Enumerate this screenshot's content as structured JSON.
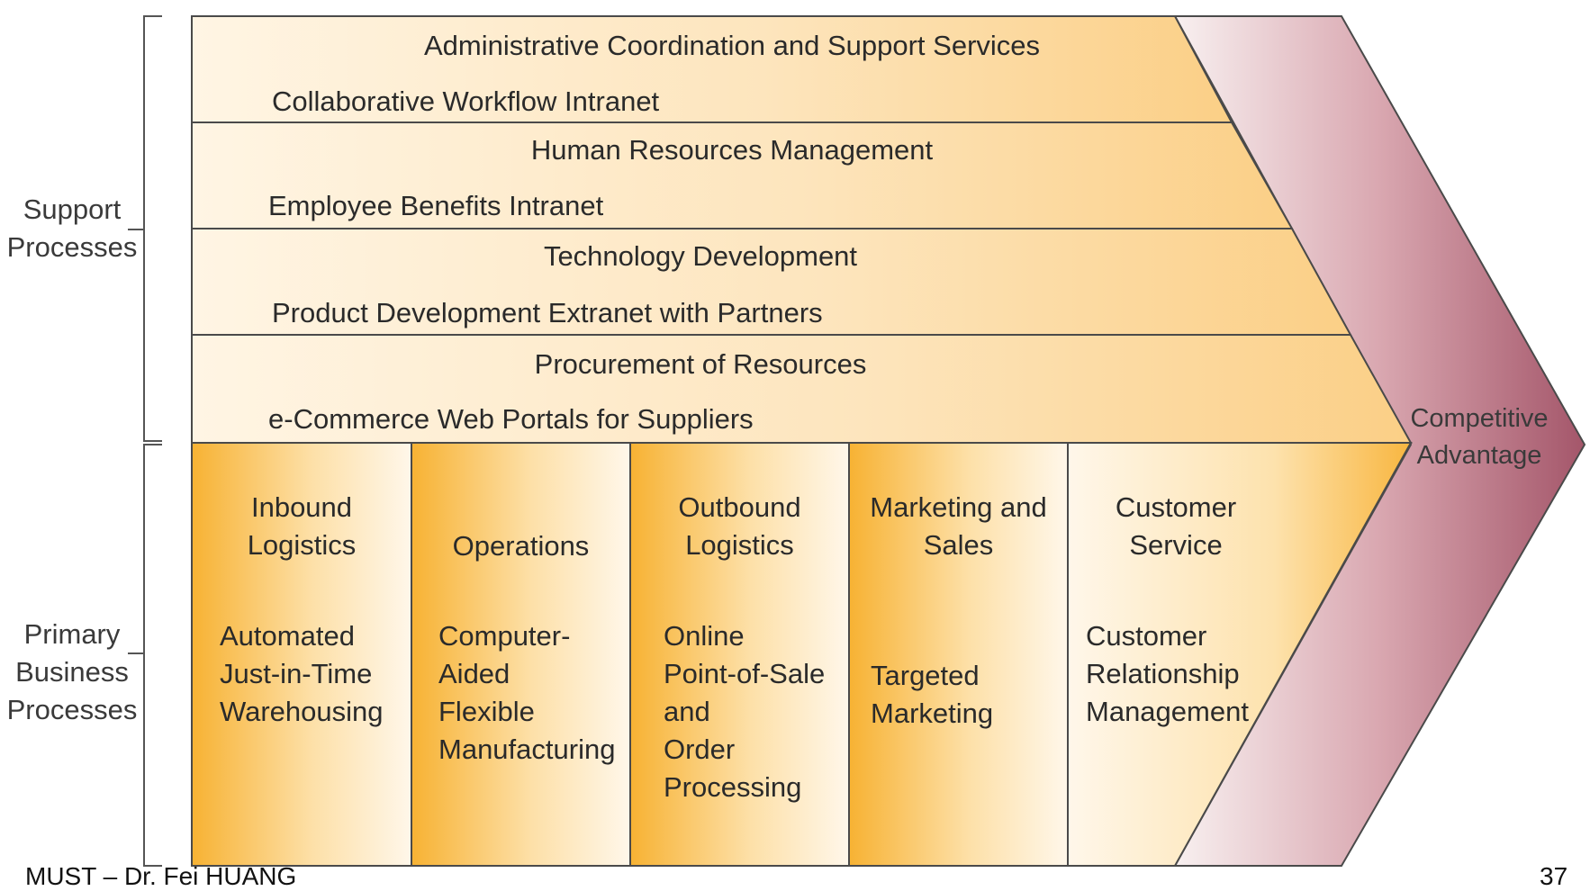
{
  "side_labels": {
    "support": "Support\nProcesses",
    "primary": "Primary\nBusiness\nProcesses"
  },
  "support_activities": [
    {
      "activity": "Administrative Coordination and Support Services",
      "application": "Collaborative Workflow Intranet"
    },
    {
      "activity": "Human Resources Management",
      "application": "Employee Benefits Intranet"
    },
    {
      "activity": "Technology Development",
      "application": "Product Development Extranet with Partners"
    },
    {
      "activity": "Procurement of Resources",
      "application": "e-Commerce Web Portals for Suppliers"
    }
  ],
  "primary_activities": [
    {
      "activity": "Inbound\nLogistics",
      "application": "Automated\nJust-in-Time\nWarehousing"
    },
    {
      "activity": "Operations",
      "application": "Computer-\nAided\nFlexible\nManufacturing"
    },
    {
      "activity": "Outbound\nLogistics",
      "application": "Online\nPoint-of-Sale\nand\nOrder\nProcessing"
    },
    {
      "activity": "Marketing and\nSales",
      "application": "Targeted\nMarketing"
    },
    {
      "activity": "Customer\nService",
      "application": "Customer\nRelationship\nManagement"
    }
  ],
  "outcome": "Competitive\nAdvantage",
  "footer": {
    "left": "MUST – Dr. Fei HUANG",
    "page_number": "37"
  },
  "colors": {
    "band_light": "#fff3df",
    "band_dark": "#fbd28c",
    "column_dark": "#f7b43a",
    "column_light": "#fff6e6",
    "arrow_light": "#f6ecec",
    "arrow_dark": "#a9596a",
    "line": "#4a4a4a"
  }
}
